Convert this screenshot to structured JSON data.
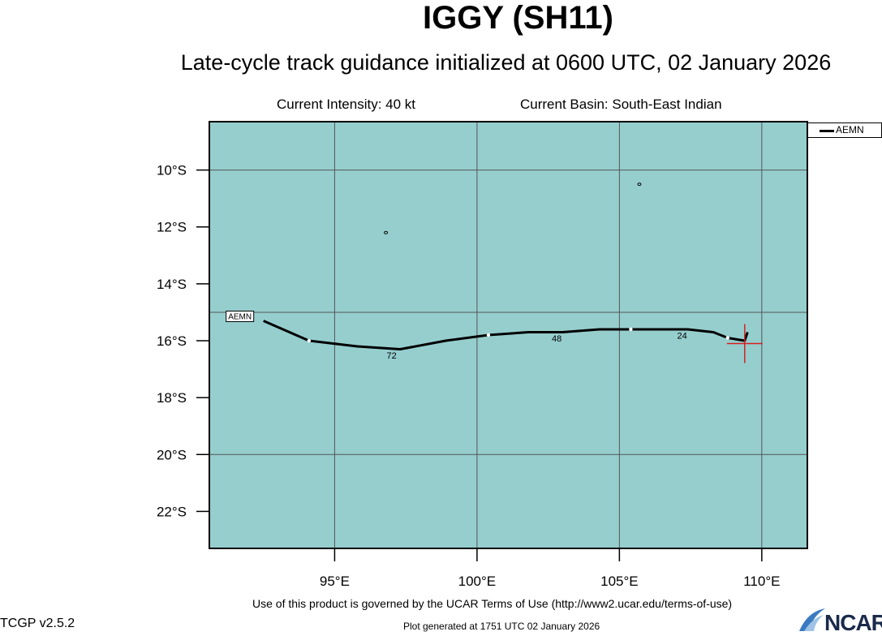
{
  "header": {
    "title": "IGGY (SH11)",
    "subtitle": "Late-cycle track guidance initialized at 0600 UTC, 02 January 2026",
    "intensity": "Current Intensity: 40 kt",
    "basin": "Current Basin: South-East Indian"
  },
  "map": {
    "background_color": "#96cece",
    "lon_range": [
      90.6,
      111.6
    ],
    "lat_range": [
      -23.3,
      -8.3
    ],
    "lat_ticks": [
      {
        "value": -10,
        "label": "10°S"
      },
      {
        "value": -12,
        "label": "12°S"
      },
      {
        "value": -14,
        "label": "14°S"
      },
      {
        "value": -16,
        "label": "16°S"
      },
      {
        "value": -18,
        "label": "18°S"
      },
      {
        "value": -20,
        "label": "20°S"
      },
      {
        "value": -22,
        "label": "22°S"
      }
    ],
    "lon_ticks": [
      {
        "value": 95,
        "label": "95°E"
      },
      {
        "value": 100,
        "label": "100°E"
      },
      {
        "value": 105,
        "label": "105°E"
      },
      {
        "value": 110,
        "label": "110°E"
      }
    ],
    "grid_lons": [
      95,
      100,
      105,
      110
    ],
    "grid_lats": [
      -10,
      -15,
      -20
    ],
    "current_position": {
      "lon": 109.4,
      "lat": -16.1,
      "color": "#d42020"
    },
    "track": {
      "model": "AEMN",
      "points": [
        {
          "lon": 109.5,
          "lat": -15.7
        },
        {
          "lon": 109.4,
          "lat": -16.0
        },
        {
          "lon": 108.8,
          "lat": -15.9
        },
        {
          "lon": 108.3,
          "lat": -15.7
        },
        {
          "lon": 107.4,
          "lat": -15.6
        },
        {
          "lon": 105.4,
          "lat": -15.6
        },
        {
          "lon": 104.3,
          "lat": -15.6
        },
        {
          "lon": 103.0,
          "lat": -15.7
        },
        {
          "lon": 101.8,
          "lat": -15.7
        },
        {
          "lon": 100.4,
          "lat": -15.8
        },
        {
          "lon": 98.9,
          "lat": -16.0
        },
        {
          "lon": 97.3,
          "lat": -16.3
        },
        {
          "lon": 95.8,
          "lat": -16.2
        },
        {
          "lon": 94.1,
          "lat": -16.0
        },
        {
          "lon": 92.5,
          "lat": -15.3
        }
      ],
      "markers": [
        {
          "lon": 108.8,
          "lat": -15.9
        },
        {
          "lon": 105.4,
          "lat": -15.6
        },
        {
          "lon": 100.4,
          "lat": -15.8
        },
        {
          "lon": 94.1,
          "lat": -16.0
        }
      ],
      "hour_labels": [
        {
          "lon": 107.2,
          "lat": -15.7,
          "text": "24"
        },
        {
          "lon": 102.8,
          "lat": -15.8,
          "text": "48"
        },
        {
          "lon": 97.0,
          "lat": -16.4,
          "text": "72"
        }
      ],
      "end_label": "AEMN"
    },
    "islands": [
      {
        "lon": 105.7,
        "lat": -10.5
      },
      {
        "lon": 96.8,
        "lat": -12.2
      }
    ]
  },
  "legend": {
    "label": "AEMN"
  },
  "footer": {
    "terms": "Use of this product is governed by the UCAR Terms of Use (http://www2.ucar.edu/terms-of-use)",
    "version": "TCGP v2.5.2",
    "generated": "Plot generated at 1751 UTC   02 January 2026",
    "logo_text": "NCAR"
  }
}
